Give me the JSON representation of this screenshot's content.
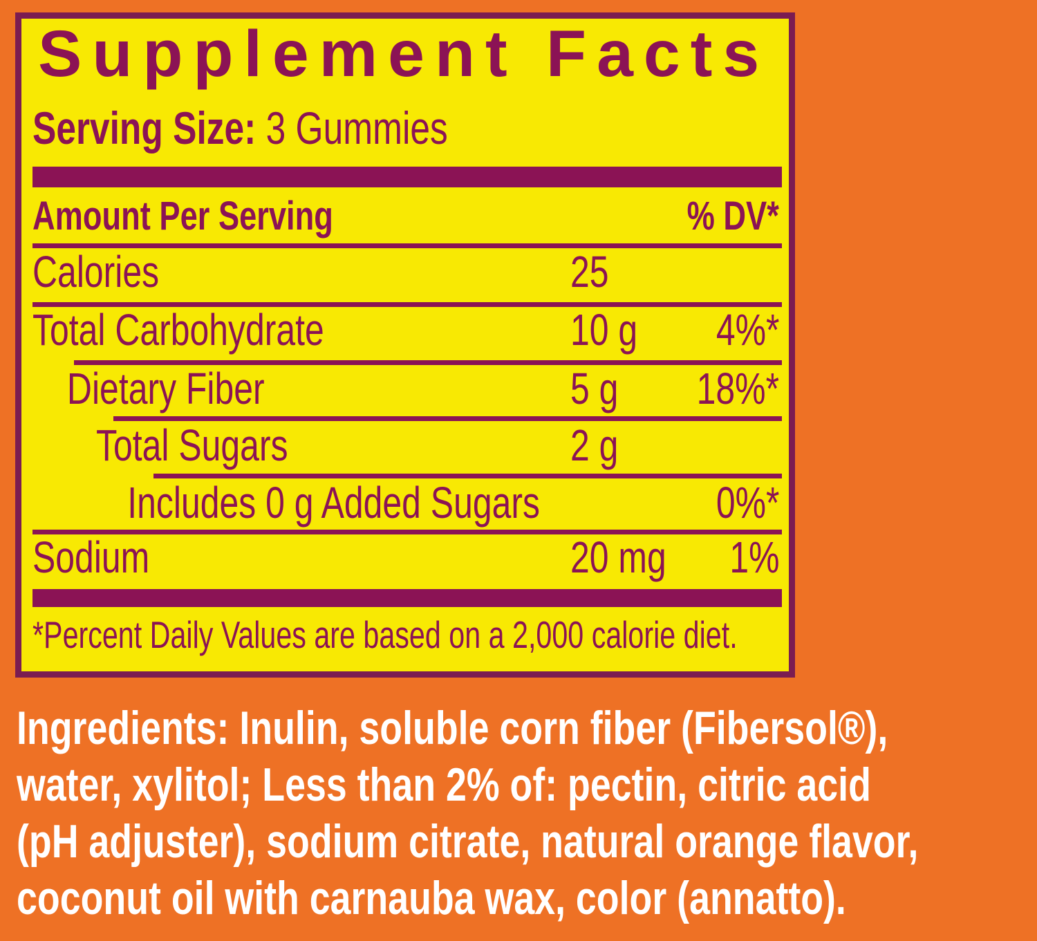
{
  "colors": {
    "background_orange": "#EE7125",
    "panel_yellow": "#F8E903",
    "text_maroon": "#8B1355",
    "panel_border_maroon": "#7B1C51",
    "ingredients_text": "#FFFFFF"
  },
  "supplement_facts": {
    "title": "Supplement Facts",
    "serving_size_label": "Serving Size:",
    "serving_size_value": "3 Gummies",
    "column_headers": {
      "left": "Amount Per Serving",
      "right": "% DV*"
    },
    "rows": [
      {
        "label": "Calories",
        "amount": "25",
        "dv": ""
      },
      {
        "label": "Total Carbohydrate",
        "amount": "10 g",
        "dv": "4%*"
      },
      {
        "label": "Dietary Fiber",
        "amount": "5 g",
        "dv": "18%*"
      },
      {
        "label": "Total Sugars",
        "amount": "2 g",
        "dv": ""
      },
      {
        "label": "Includes 0 g Added Sugars",
        "amount": "",
        "dv": "0%*"
      },
      {
        "label": "Sodium",
        "amount": "20 mg",
        "dv": "1%"
      }
    ],
    "footnote": "*Percent Daily Values are based on a 2,000 calorie diet."
  },
  "ingredients": {
    "label": "Ingredients:",
    "text": " Inulin, soluble corn fiber (Fibersol®),\nwater, xylitol; Less than 2% of: pectin, citric acid\n(pH adjuster), sodium citrate, natural orange flavor,\ncoconut oil with carnauba wax, color (annatto)."
  }
}
